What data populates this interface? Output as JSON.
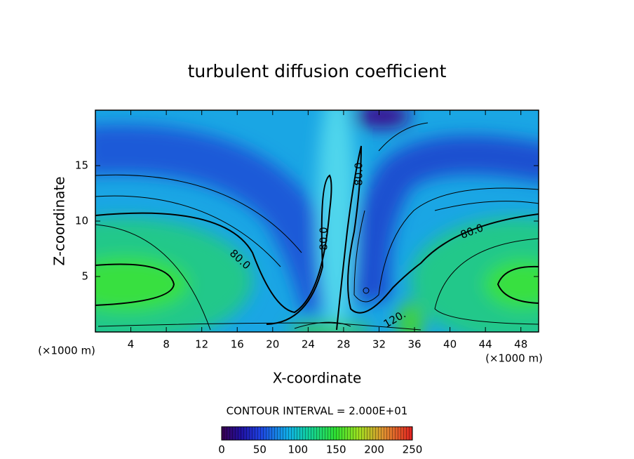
{
  "chart_data": {
    "type": "contour",
    "title": "turbulent diffusion coefficient",
    "x_label": "X-coordinate",
    "y_label": "Z-coordinate",
    "unit_labels": [
      "(×1000 m)",
      "(×1000 m)"
    ],
    "xlim": [
      0,
      50
    ],
    "xticks": [
      4,
      8,
      12,
      16,
      20,
      24,
      28,
      32,
      36,
      40,
      44,
      48
    ],
    "ylim": [
      0,
      20
    ],
    "yticks": [
      5,
      10,
      15
    ],
    "contour_labels": [
      "80.0",
      "80.0",
      "80.0",
      "80.0",
      "120."
    ],
    "contour_interval_label": "CONTOUR INTERVAL = 2.000E+01",
    "colorbar": {
      "lim": [
        0,
        250
      ],
      "ticks": [
        0,
        50,
        100,
        150,
        200,
        250
      ]
    }
  }
}
